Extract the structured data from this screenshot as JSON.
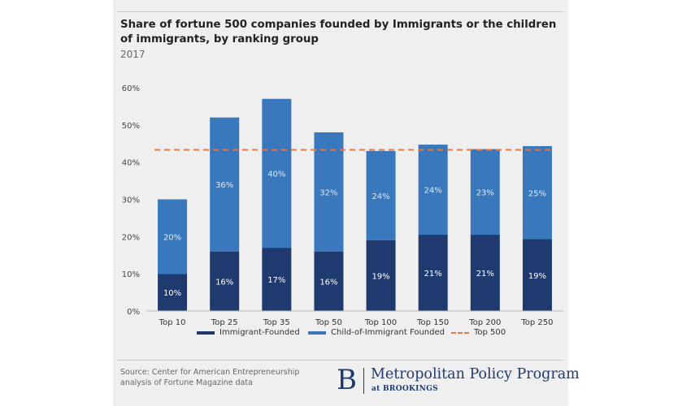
{
  "header": {
    "title": "Share of fortune 500 companies founded by Immigrants or the children of immigrants, by ranking group",
    "subtitle": "2017"
  },
  "chart_data": {
    "type": "bar",
    "stacked": true,
    "title": "Share of fortune 500 companies founded by Immigrants or the children of immigrants, by ranking group",
    "subtitle": "2017",
    "categories": [
      "Top 10",
      "Top 25",
      "Top 35",
      "Top 50",
      "Top 100",
      "Top 150",
      "Top 200",
      "Top 250"
    ],
    "series": [
      {
        "name": "Immigrant-Founded",
        "color": "#1f3a6e",
        "values": [
          10,
          16,
          17,
          16,
          19,
          20.5,
          20.5,
          19.3
        ],
        "labels": [
          "10%",
          "16%",
          "17%",
          "16%",
          "19%",
          "21%",
          "21%",
          "19%"
        ]
      },
      {
        "name": "Child-of-Immigrant Founded",
        "color": "#3a78bd",
        "values": [
          20,
          36,
          40,
          32,
          24,
          24.2,
          23,
          25
        ],
        "labels": [
          "20%",
          "36%",
          "40%",
          "32%",
          "24%",
          "24%",
          "23%",
          "25%"
        ]
      }
    ],
    "reference_line": {
      "name": "Top 500",
      "value": 43.3,
      "color": "#e07a4a",
      "style": "dashed"
    },
    "ylim": [
      0,
      60
    ],
    "yticks": [
      0,
      10,
      20,
      30,
      40,
      50,
      60
    ],
    "ytick_labels": [
      "0%",
      "10%",
      "20%",
      "30%",
      "40%",
      "50%",
      "60%"
    ],
    "xlabel": "",
    "ylabel": "",
    "grid": false,
    "legend_position": "bottom"
  },
  "footer": {
    "source": "Source: Center for American Entrepreneurship analysis of Fortune Magazine data",
    "logo_letter": "B",
    "logo_name": "Metropolitan Policy Program",
    "logo_sub": "at BROOKINGS"
  }
}
